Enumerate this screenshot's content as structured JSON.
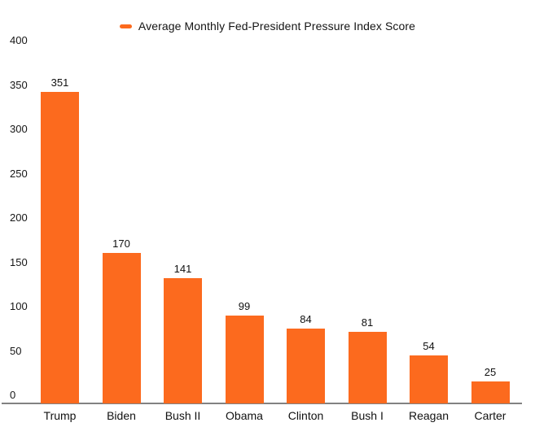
{
  "colors": {
    "bar": "#FC6A1E",
    "axis_line": "#828282",
    "text": "#141414"
  },
  "chart_data": {
    "type": "bar",
    "title": "",
    "legend_label": "Average Monthly Fed-President Pressure Index Score",
    "legend_position": "top-center",
    "categories": [
      "Trump",
      "Biden",
      "Bush II",
      "Obama",
      "Clinton",
      "Bush I",
      "Reagan",
      "Carter"
    ],
    "values": [
      351,
      170,
      141,
      99,
      84,
      81,
      54,
      25
    ],
    "value_labels": [
      "351",
      "170",
      "141",
      "99",
      "84",
      "81",
      "54",
      "25"
    ],
    "xlabel": "",
    "ylabel": "",
    "ylim": [
      0,
      400
    ],
    "yticks": [
      0,
      50,
      100,
      150,
      200,
      250,
      300,
      350,
      400
    ],
    "grid": false,
    "bar_color": "#FC6A1E"
  }
}
